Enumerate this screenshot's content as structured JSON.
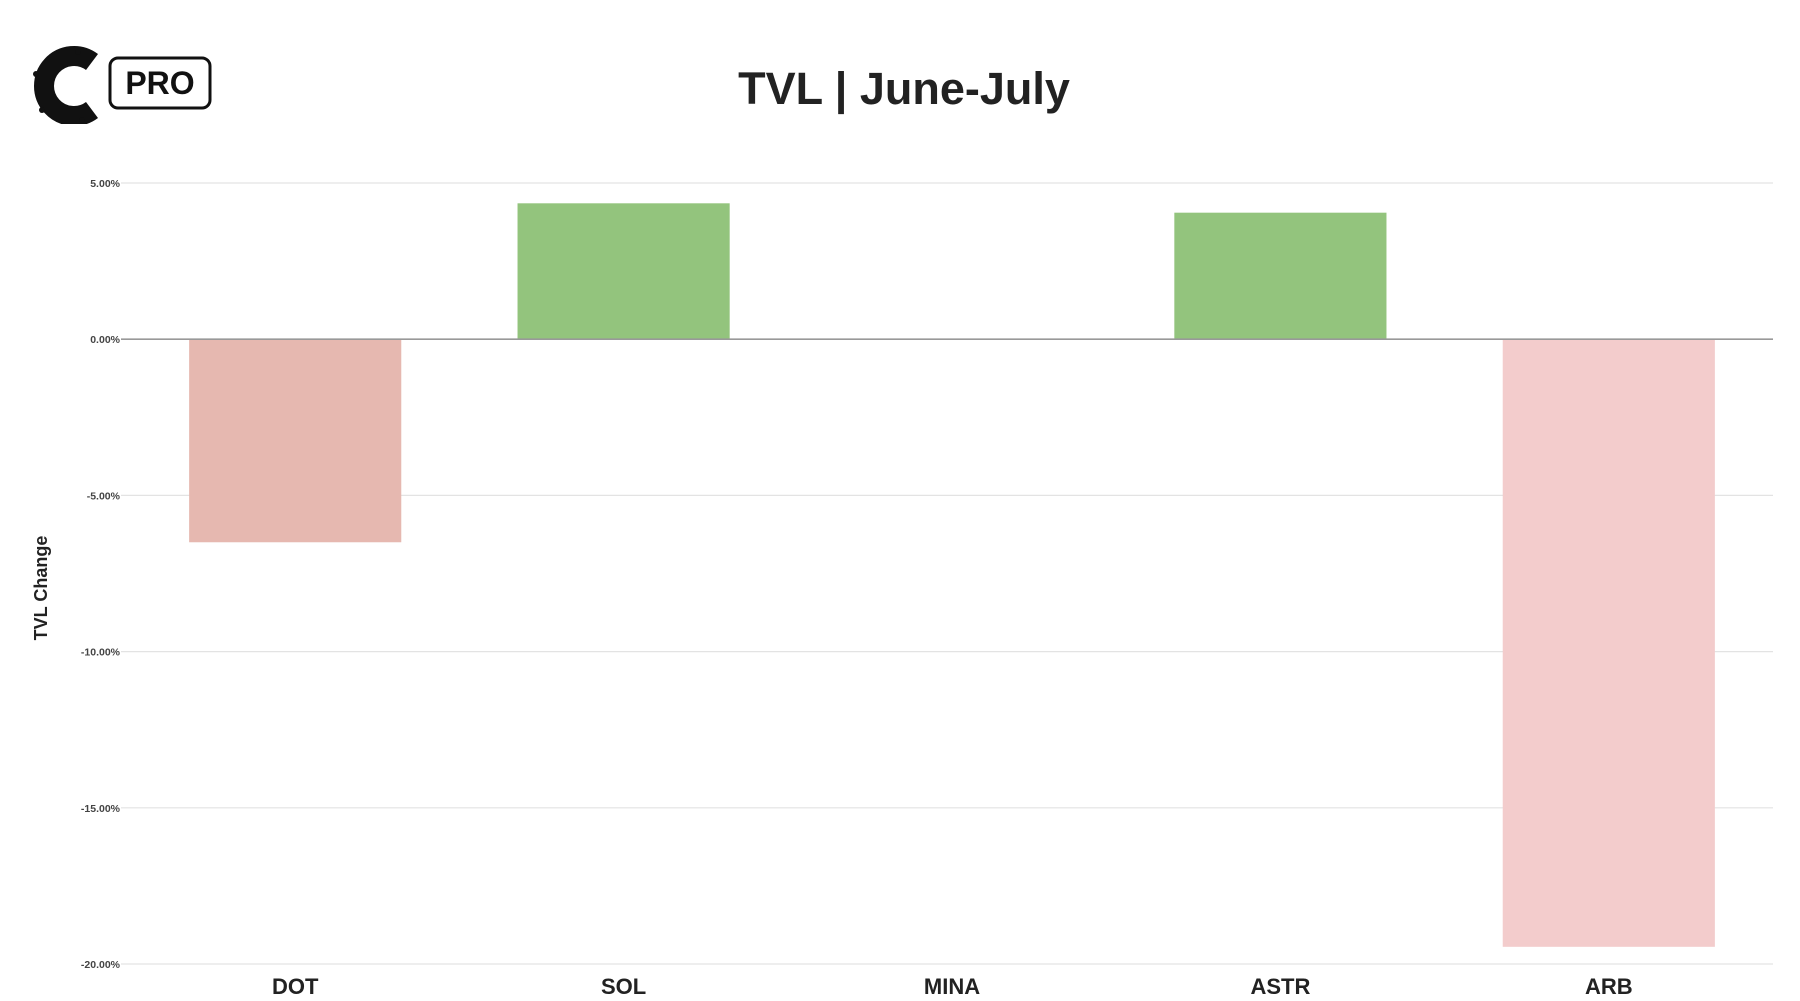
{
  "logo": {
    "badge_text": "PRO"
  },
  "chart_data": {
    "type": "bar",
    "title": "TVL | June-July",
    "xlabel": "",
    "ylabel": "TVL Change",
    "categories": [
      "DOT",
      "SOL",
      "MINA",
      "ASTR",
      "ARB"
    ],
    "values": [
      -6.5,
      4.35,
      0.0,
      4.05,
      -19.45
    ],
    "ylim": [
      -20,
      5
    ],
    "yticks": [
      5,
      0,
      -5,
      -10,
      -15,
      -20
    ],
    "ytick_labels": [
      "5.00%",
      "0.00%",
      "-5.00%",
      "-10.00%",
      "-15.00%",
      "-20.00%"
    ],
    "bar_colors": [
      "#e6b8b0",
      "#93c47d",
      "#93c47d",
      "#93c47d",
      "#f3cccc"
    ],
    "grid": true,
    "legend": "none"
  }
}
